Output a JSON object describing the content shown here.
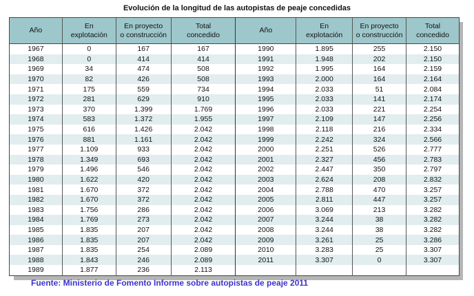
{
  "title": "Evolución de la longitud de las autopistas de peaje concedidas",
  "headers": {
    "year": "Año",
    "exploitation_l1": "En",
    "exploitation_l2": "explotación",
    "project_l1": "En proyecto",
    "project_l2": "o construcción",
    "total_l1": "Total",
    "total_l2": "concedido"
  },
  "left_rows": [
    [
      "1967",
      "0",
      "167",
      "167"
    ],
    [
      "1968",
      "0",
      "414",
      "414"
    ],
    [
      "1969",
      "34",
      "474",
      "508"
    ],
    [
      "1970",
      "82",
      "426",
      "508"
    ],
    [
      "1971",
      "175",
      "559",
      "734"
    ],
    [
      "1972",
      "281",
      "629",
      "910"
    ],
    [
      "1973",
      "370",
      "1.399",
      "1.769"
    ],
    [
      "1974",
      "583",
      "1.372",
      "1.955"
    ],
    [
      "1975",
      "616",
      "1.426",
      "2.042"
    ],
    [
      "1976",
      "881",
      "1.161",
      "2.042"
    ],
    [
      "1977",
      "1.109",
      "933",
      "2.042"
    ],
    [
      "1978",
      "1.349",
      "693",
      "2.042"
    ],
    [
      "1979",
      "1.496",
      "546",
      "2.042"
    ],
    [
      "1980",
      "1.622",
      "420",
      "2.042"
    ],
    [
      "1981",
      "1.670",
      "372",
      "2.042"
    ],
    [
      "1982",
      "1.670",
      "372",
      "2.042"
    ],
    [
      "1983",
      "1.756",
      "286",
      "2.042"
    ],
    [
      "1984",
      "1.769",
      "273",
      "2.042"
    ],
    [
      "1985",
      "1.835",
      "207",
      "2.042"
    ],
    [
      "1986",
      "1.835",
      "207",
      "2.042"
    ],
    [
      "1987",
      "1.835",
      "254",
      "2.089"
    ],
    [
      "1988",
      "1.843",
      "246",
      "2.089"
    ],
    [
      "1989",
      "1.877",
      "236",
      "2.113"
    ]
  ],
  "right_rows": [
    [
      "1990",
      "1.895",
      "255",
      "2.150"
    ],
    [
      "1991",
      "1.948",
      "202",
      "2.150"
    ],
    [
      "1992",
      "1.995",
      "164",
      "2.159"
    ],
    [
      "1993",
      "2.000",
      "164",
      "2.164"
    ],
    [
      "1994",
      "2.033",
      "51",
      "2.084"
    ],
    [
      "1995",
      "2.033",
      "141",
      "2.174"
    ],
    [
      "1996",
      "2.033",
      "221",
      "2.254"
    ],
    [
      "1997",
      "2.109",
      "147",
      "2.256"
    ],
    [
      "1998",
      "2.118",
      "216",
      "2.334"
    ],
    [
      "1999",
      "2.242",
      "324",
      "2.566"
    ],
    [
      "2000",
      "2.251",
      "526",
      "2.777"
    ],
    [
      "2001",
      "2.327",
      "456",
      "2.783"
    ],
    [
      "2002",
      "2.447",
      "350",
      "2.797"
    ],
    [
      "2003",
      "2.624",
      "208",
      "2.832"
    ],
    [
      "2004",
      "2.788",
      "470",
      "3.257"
    ],
    [
      "2005",
      "2.811",
      "447",
      "3.257"
    ],
    [
      "2006",
      "3.069",
      "213",
      "3.282"
    ],
    [
      "2007",
      "3.244",
      "38",
      "3.282"
    ],
    [
      "2008",
      "3.244",
      "38",
      "3.282"
    ],
    [
      "2009",
      "3.261",
      "25",
      "3.286"
    ],
    [
      "2010",
      "3.283",
      "25",
      "3.307"
    ],
    [
      "2011",
      "3.307",
      "0",
      "3.307"
    ]
  ],
  "source": "Fuente: Ministerio de Fomento Informe sobre autopistas de peaje 2011"
}
